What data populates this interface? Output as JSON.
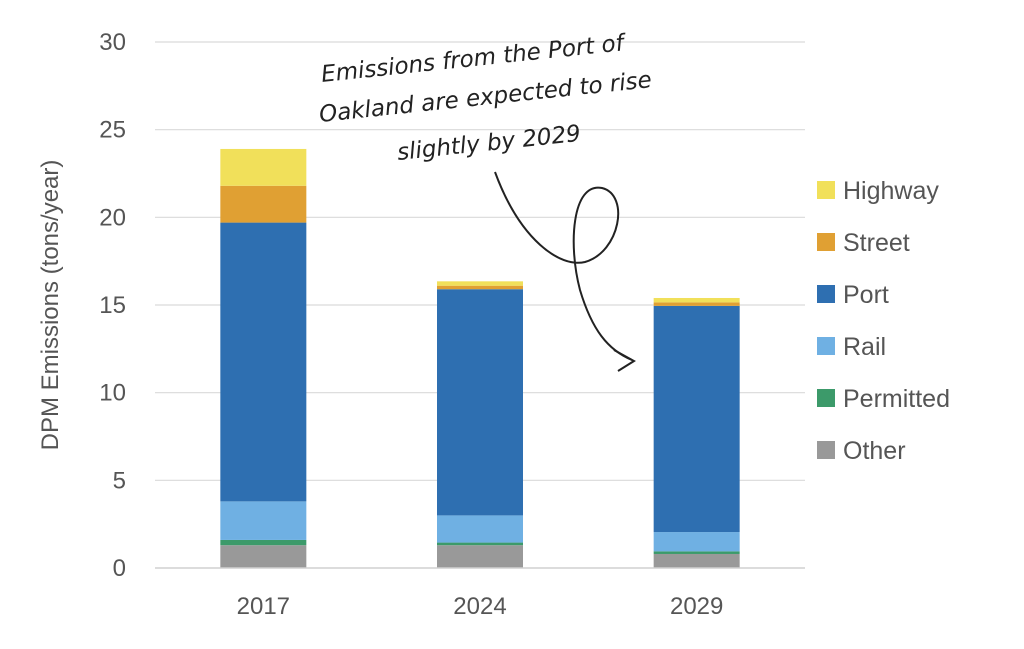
{
  "chart_data": {
    "type": "bar",
    "stacked": true,
    "categories": [
      "2017",
      "2024",
      "2029"
    ],
    "series": [
      {
        "name": "Other",
        "color": "#999999",
        "values": [
          1.3,
          1.3,
          0.8
        ]
      },
      {
        "name": "Permitted",
        "color": "#3c9a6a",
        "values": [
          0.3,
          0.15,
          0.15
        ]
      },
      {
        "name": "Rail",
        "color": "#6fb0e3",
        "values": [
          2.2,
          1.55,
          1.1
        ]
      },
      {
        "name": "Port",
        "color": "#2e6fb1",
        "values": [
          15.9,
          12.9,
          12.9
        ]
      },
      {
        "name": "Street",
        "color": "#e0a033",
        "values": [
          2.1,
          0.2,
          0.2
        ]
      },
      {
        "name": "Highway",
        "color": "#f1e05a",
        "values": [
          2.1,
          0.25,
          0.25
        ]
      }
    ],
    "ylabel": "DPM Emissions (tons/year)",
    "ylim": [
      0,
      30
    ],
    "yticks": [
      "0",
      "5",
      "10",
      "15",
      "20",
      "25",
      "30"
    ],
    "grid": true,
    "legend_position": "right",
    "legend_order": [
      "Highway",
      "Street",
      "Port",
      "Rail",
      "Permitted",
      "Other"
    ],
    "annotation": {
      "lines": [
        "Emissions from the Port of",
        "Oakland are expected to rise",
        "slightly by 2029"
      ],
      "points_to": "2029"
    }
  }
}
